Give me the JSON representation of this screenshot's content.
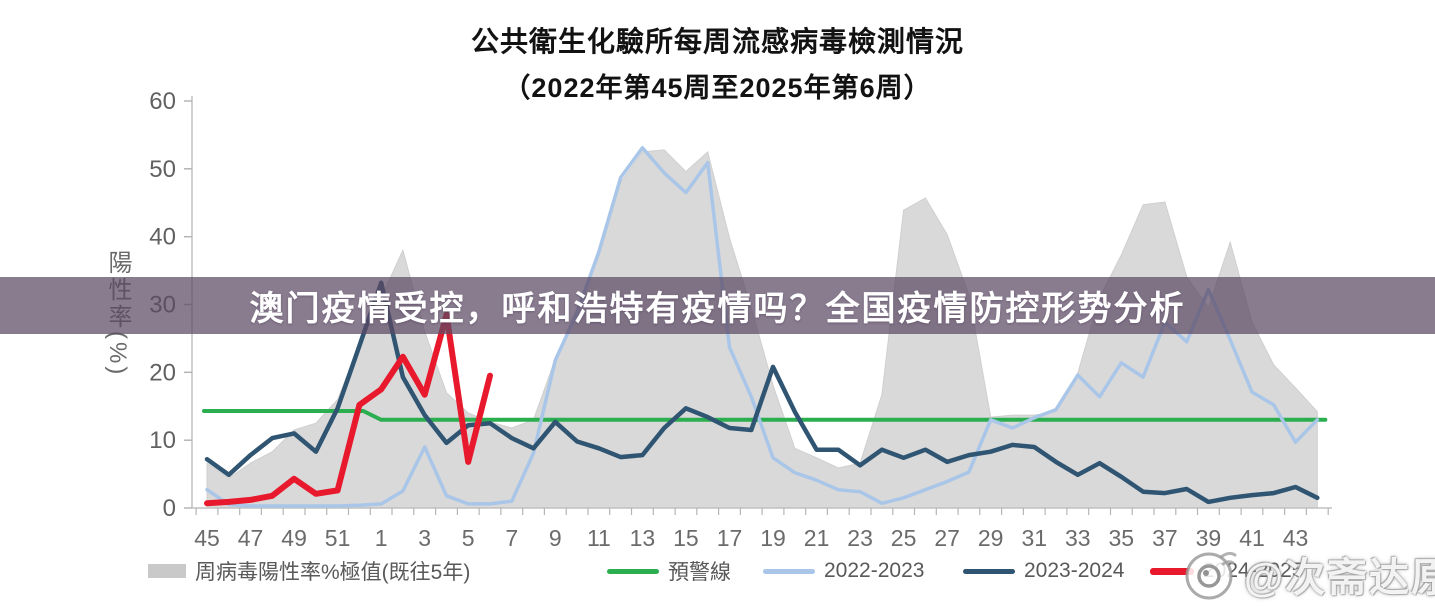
{
  "overlay_banner": {
    "text": "澳门疫情受控，呼和浩特有疫情吗？全国疫情防控形势分析",
    "background_color": "rgba(92,74,100,0.72)",
    "text_color": "#ffffff"
  },
  "watermark": {
    "handle": "@次斋达原",
    "icon": "weibo-eye-icon"
  },
  "style_colors": {
    "axis_line": "#C0C0C0",
    "axis_text": "#616161",
    "legend_text": "#595959"
  },
  "chart_data": {
    "type": "line",
    "title": "公共衛生化驗所每周流感病毒檢測情況",
    "subtitle": "（2022年第45周至2025年第6周）",
    "ylabel": "陽性率(%)",
    "ylim": [
      0,
      60
    ],
    "yticks": [
      0,
      10,
      20,
      30,
      40,
      50,
      60
    ],
    "grid": false,
    "legend_position": "bottom",
    "xtick_labels": [
      "45",
      "47",
      "49",
      "51",
      "1",
      "3",
      "5",
      "7",
      "9",
      "11",
      "13",
      "15",
      "17",
      "19",
      "21",
      "23",
      "25",
      "27",
      "29",
      "31",
      "33",
      "35",
      "37",
      "39",
      "41",
      "43"
    ],
    "x_weeks": [
      "45",
      "46",
      "47",
      "48",
      "49",
      "50",
      "51",
      "52",
      "1",
      "2",
      "3",
      "4",
      "5",
      "6",
      "7",
      "8",
      "9",
      "10",
      "11",
      "12",
      "13",
      "14",
      "15",
      "16",
      "17",
      "18",
      "19",
      "20",
      "21",
      "22",
      "23",
      "24",
      "25",
      "26",
      "27",
      "28",
      "29",
      "30",
      "31",
      "32",
      "33",
      "34",
      "35",
      "36",
      "37",
      "38",
      "39",
      "40",
      "41",
      "42",
      "43",
      "44"
    ],
    "series": [
      {
        "name": "周病毒陽性率%極值(既往5年)",
        "type": "area",
        "color": "#D9D9D9",
        "values": [
          6.6,
          4.4,
          6.6,
          8.3,
          11.5,
          12.5,
          16,
          24,
          31,
          38,
          26,
          17,
          14,
          12.7,
          11.8,
          13,
          22,
          29.5,
          37,
          48,
          52.5,
          52.8,
          49.6,
          52.5,
          39.8,
          29.5,
          18.1,
          8.8,
          7.4,
          5.9,
          6.6,
          16.7,
          43.9,
          45.7,
          40.3,
          31.4,
          13.4,
          13.7,
          13.7,
          14.2,
          19.9,
          31,
          37.3,
          44.7,
          45.1,
          34.1,
          29.5,
          39.2,
          27.4,
          21.1,
          17.7,
          14.2
        ]
      },
      {
        "name": "預警線",
        "type": "step-line",
        "color": "#2BAE4F",
        "segments": [
          {
            "weeks": "45-52",
            "value": 14.3
          },
          {
            "weeks": "1-44",
            "value": 13.0
          }
        ]
      },
      {
        "name": "2022-2023",
        "type": "line",
        "color": "#A9C6E8",
        "values": [
          2.7,
          0.5,
          0.3,
          0.3,
          0.3,
          0.3,
          0.3,
          0.4,
          0.6,
          2.5,
          9,
          1.8,
          0.6,
          0.6,
          1,
          8.1,
          21.8,
          28.8,
          37.8,
          48.7,
          53.1,
          49.4,
          46.5,
          50.9,
          23.7,
          16.4,
          7.4,
          5.2,
          4.1,
          2.7,
          2.4,
          0.7,
          1.5,
          2.7,
          3.9,
          5.3,
          13,
          11.8,
          13.3,
          14.5,
          19.6,
          16.4,
          21.4,
          19.3,
          27.4,
          24.5,
          32.2,
          24.8,
          17.1,
          15.2,
          9.7,
          13
        ]
      },
      {
        "name": "2023-2024",
        "type": "line",
        "color": "#2F5572",
        "values": [
          7.2,
          4.9,
          7.8,
          10.3,
          11,
          8.3,
          14.7,
          23.9,
          33.2,
          19.3,
          13.7,
          9.6,
          12.2,
          12.5,
          10.3,
          8.8,
          12.7,
          9.8,
          8.8,
          7.5,
          7.8,
          11.8,
          14.7,
          13.4,
          11.8,
          11.5,
          20.8,
          14.2,
          8.6,
          8.6,
          6.3,
          8.6,
          7.4,
          8.6,
          6.8,
          7.8,
          8.3,
          9.3,
          9,
          6.8,
          4.9,
          6.6,
          4.6,
          2.4,
          2.2,
          2.8,
          0.9,
          1.5,
          1.9,
          2.2,
          3.1,
          1.5
        ]
      },
      {
        "name": "2024-2025",
        "type": "line",
        "color": "#E8192C",
        "values": [
          0.7,
          0.9,
          1.2,
          1.8,
          4.3,
          2.1,
          2.6,
          15.2,
          17.5,
          22.3,
          16.7,
          28.5,
          6.8,
          19.5,
          null,
          null,
          null,
          null,
          null,
          null,
          null,
          null,
          null,
          null,
          null,
          null,
          null,
          null,
          null,
          null,
          null,
          null,
          null,
          null,
          null,
          null,
          null,
          null,
          null,
          null,
          null,
          null,
          null,
          null,
          null,
          null,
          null,
          null,
          null,
          null,
          null,
          null
        ]
      }
    ]
  }
}
